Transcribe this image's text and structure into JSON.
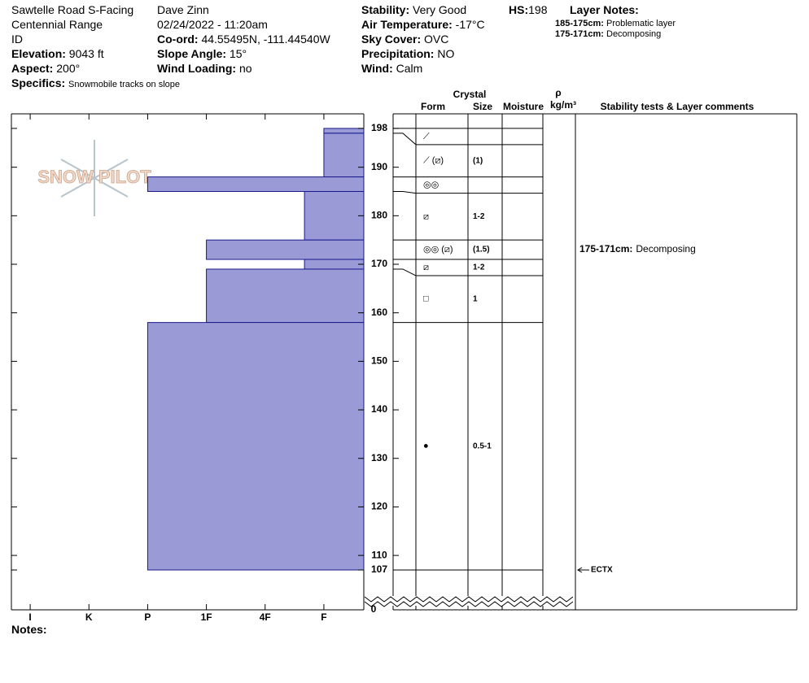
{
  "header": {
    "site": "Sawtelle Road S-Facing",
    "range": "Centennial Range",
    "state": "ID",
    "elevation": {
      "label": "Elevation:",
      "value": "9043 ft"
    },
    "aspect": {
      "label": "Aspect:",
      "value": "200°"
    },
    "specifics": {
      "label": "Specifics:",
      "value": "Snowmobile tracks on slope"
    },
    "observer": "Dave Zinn",
    "datetime": "02/24/2022 - 11:20am",
    "coord": {
      "label": "Co-ord:",
      "value": "44.55495N, -111.44540W"
    },
    "slope": {
      "label": "Slope Angle:",
      "value": "15°"
    },
    "wind_loading": {
      "label": "Wind Loading:",
      "value": "no"
    },
    "stability": {
      "label": "Stability:",
      "value": "Very Good"
    },
    "air_temp": {
      "label": "Air Temperature:",
      "value": "-17°C"
    },
    "sky": {
      "label": "Sky Cover:",
      "value": "OVC"
    },
    "precip": {
      "label": "Precipitation:",
      "value": "NO"
    },
    "wind": {
      "label": "Wind:",
      "value": "Calm"
    },
    "hs": {
      "label": "HS:",
      "value": 198
    },
    "layer_notes": {
      "title": "Layer Notes:",
      "items": [
        {
          "label": "185-175cm:",
          "text": "Problematic layer"
        },
        {
          "label": "175-171cm:",
          "text": "Decomposing"
        }
      ]
    }
  },
  "logo": "SNOW PILOT",
  "notes_label": "Notes:",
  "chart_data": {
    "type": "snow-profile",
    "ylim": [
      107,
      201
    ],
    "yticks": [
      198,
      190,
      180,
      170,
      160,
      150,
      140,
      130,
      120,
      110,
      107
    ],
    "ybreak": 0,
    "xlim": [
      6.32,
      0.32
    ],
    "xticks": [
      {
        "value": 6,
        "label": "I"
      },
      {
        "value": 5,
        "label": "K"
      },
      {
        "value": 4,
        "label": "P"
      },
      {
        "value": 3,
        "label": "1F"
      },
      {
        "value": 2,
        "label": "4F"
      },
      {
        "value": 1,
        "label": "F"
      }
    ],
    "color": "#9a9ad6",
    "columns": {
      "crystal": "Crystal",
      "form": "Form",
      "size": "Size",
      "moisture": "Moisture",
      "density_symbol": "ρ",
      "density_unit": "kg/m³",
      "comments": "Stability tests & Layer comments"
    },
    "layers": [
      {
        "top": 198,
        "bottom": 197,
        "hardness": 1,
        "form": "⟋"
      },
      {
        "top": 197,
        "bottom": 188,
        "hardness": 1,
        "form": "⟋ (⧄)",
        "size": "(1)"
      },
      {
        "top": 188,
        "bottom": 185,
        "hardness": 4,
        "form": "◎◎"
      },
      {
        "top": 185,
        "bottom": 175,
        "hardness": 1.33,
        "form": "⧄",
        "size": "1-2"
      },
      {
        "top": 175,
        "bottom": 171,
        "hardness": 3,
        "form": "◎◎ (⧄)",
        "size": "(1.5)",
        "comment_label": "175-171cm:",
        "comment": "Decomposing"
      },
      {
        "top": 171,
        "bottom": 169,
        "hardness": 1.33,
        "form": "⧄",
        "size": "1-2"
      },
      {
        "top": 169,
        "bottom": 158,
        "hardness": 3,
        "form": "□",
        "size": "1"
      },
      {
        "top": 158,
        "bottom": 107,
        "hardness": 4,
        "form": "●",
        "size": "0.5-1"
      }
    ],
    "tests": [
      {
        "height": 107,
        "label": "ECTX"
      }
    ]
  }
}
